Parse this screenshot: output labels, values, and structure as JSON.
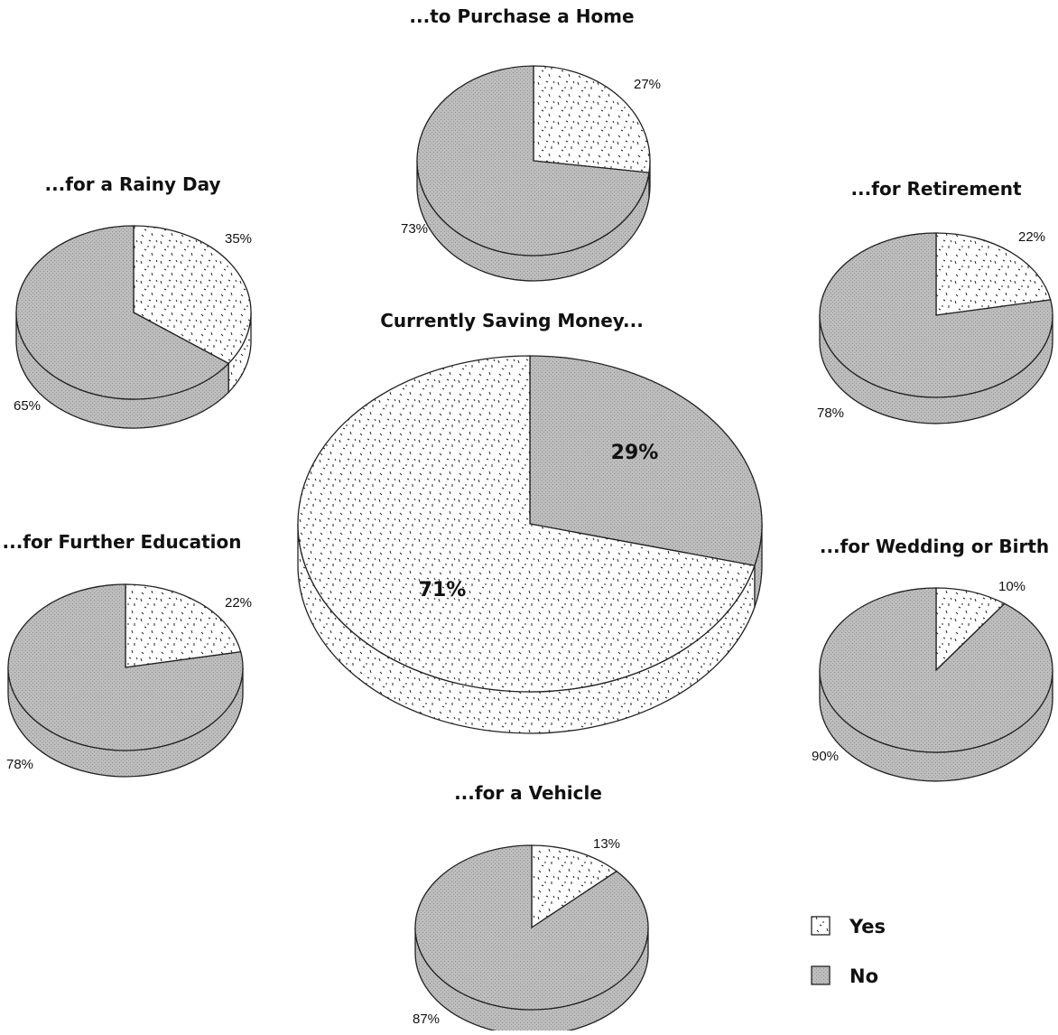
{
  "colors": {
    "yes": "#ffffff",
    "no": "#b7b7b7",
    "outline": "#222222",
    "text": "#111111"
  },
  "legend": {
    "yes_label": "Yes",
    "no_label": "No"
  },
  "chart_data": [
    {
      "type": "pie",
      "title": "Currently Saving Money...",
      "labels": [
        "Yes",
        "No"
      ],
      "values": [
        71,
        29
      ],
      "value_labels": [
        "71%",
        "29%"
      ]
    },
    {
      "type": "pie",
      "title": "...to Purchase a Home",
      "labels": [
        "Yes",
        "No"
      ],
      "values": [
        27,
        73
      ],
      "value_labels": [
        "27%",
        "73%"
      ]
    },
    {
      "type": "pie",
      "title": "...for a Rainy Day",
      "labels": [
        "Yes",
        "No"
      ],
      "values": [
        35,
        65
      ],
      "value_labels": [
        "35%",
        "65%"
      ]
    },
    {
      "type": "pie",
      "title": "...for Retirement",
      "labels": [
        "Yes",
        "No"
      ],
      "values": [
        22,
        78
      ],
      "value_labels": [
        "22%",
        "78%"
      ]
    },
    {
      "type": "pie",
      "title": "...for Further Education",
      "labels": [
        "Yes",
        "No"
      ],
      "values": [
        22,
        78
      ],
      "value_labels": [
        "22%",
        "78%"
      ]
    },
    {
      "type": "pie",
      "title": "...for Wedding or Birth",
      "labels": [
        "Yes",
        "No"
      ],
      "values": [
        10,
        90
      ],
      "value_labels": [
        "10%",
        "90%"
      ]
    },
    {
      "type": "pie",
      "title": "...for a Vehicle",
      "labels": [
        "Yes",
        "No"
      ],
      "values": [
        13,
        87
      ],
      "value_labels": [
        "13%",
        "87%"
      ]
    }
  ]
}
